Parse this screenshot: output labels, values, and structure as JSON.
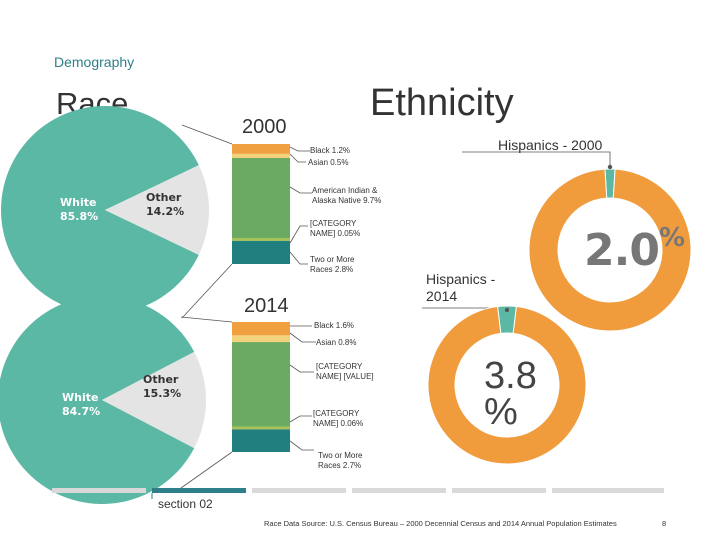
{
  "header": {
    "section_label": "Demography",
    "race_title": "Race",
    "ethnicity_title": "Ethnicity",
    "year_2000": "2000",
    "year_2014": "2014"
  },
  "colors": {
    "white_slice": "#5bb8a5",
    "other_slice": "#e4e4e4",
    "black": "#f0a040",
    "asian": "#f2d27a",
    "american_indian": "#6aaa62",
    "category_name": "#a7c25a",
    "two_or_more": "#217f80",
    "hispanic": "#5bb8a5",
    "non_hispanic": "#f09b3c"
  },
  "chart_data": [
    {
      "type": "pie",
      "year": "2000",
      "labels": [
        "White\n85.8%",
        "Other\n14.2%"
      ],
      "values": [
        85.8,
        14.2
      ]
    },
    {
      "type": "bar",
      "stacked": true,
      "year": "2000",
      "labels": [
        "Black 1.2%",
        "Asian 0.5%",
        "American Indian & Alaska Native 9.7%",
        "[CATEGORY NAME] 0.05%",
        "Two or More Races 2.8%"
      ],
      "values": [
        1.2,
        0.5,
        9.7,
        0.05,
        2.8
      ]
    },
    {
      "type": "pie",
      "year": "2014",
      "labels": [
        "White\n84.7%",
        "Other\n15.3%"
      ],
      "values": [
        84.7,
        15.3
      ]
    },
    {
      "type": "bar",
      "stacked": true,
      "year": "2014",
      "labels": [
        "Black 1.6%",
        "Asian 0.8%",
        "[CATEGORY NAME] [VALUE]",
        "[CATEGORY NAME] 0.06%",
        "Two or More Races 2.7%"
      ],
      "values": [
        1.6,
        0.8,
        10.1,
        0.06,
        2.7
      ]
    },
    {
      "type": "pie",
      "donut": true,
      "title": "Hispanics - 2000",
      "center_label": "2.0%",
      "values": [
        2.0,
        98.0
      ]
    },
    {
      "type": "pie",
      "donut": true,
      "title": "Hispanics - 2014",
      "center_label": "3.8 %",
      "values": [
        3.8,
        96.2
      ]
    }
  ],
  "labels": {
    "black_2000": "Black 1.2%",
    "asian_2000": "Asian 0.5%",
    "american_indian_2000": "American Indian & Alaska Native 9.7%",
    "category_2000": "[CATEGORY NAME] 0.05%",
    "two_more_2000": "Two or More Races 2.8%",
    "black_2014": "Black 1.6%",
    "asian_2014": "Asian 0.8%",
    "category_value_2014": "[CATEGORY NAME] [VALUE]",
    "category_2014": "[CATEGORY NAME] 0.06%",
    "two_more_2014": "Two or More Races 2.7%",
    "white_2000_name": "White",
    "white_2000_value": "85.8%",
    "other_2000_name": "Other",
    "other_2000_value": "14.2%",
    "white_2014_name": "White",
    "white_2014_value": "84.7%",
    "other_2014_name": "Other",
    "other_2014_value": "15.3%",
    "hisp_2000_title": "Hispanics - 2000",
    "hisp_2014_title": "Hispanics - 2014",
    "hisp_2000_number": "2.0",
    "hisp_2000_pct": "%",
    "hisp_2014_number": "3.8",
    "hisp_2014_pct": "%"
  },
  "footer": {
    "section": "section 02",
    "source": "Race Data Source: U.S. Census Bureau – 2000 Decennial Census and 2014 Annual Population Estimates",
    "page": "8"
  }
}
